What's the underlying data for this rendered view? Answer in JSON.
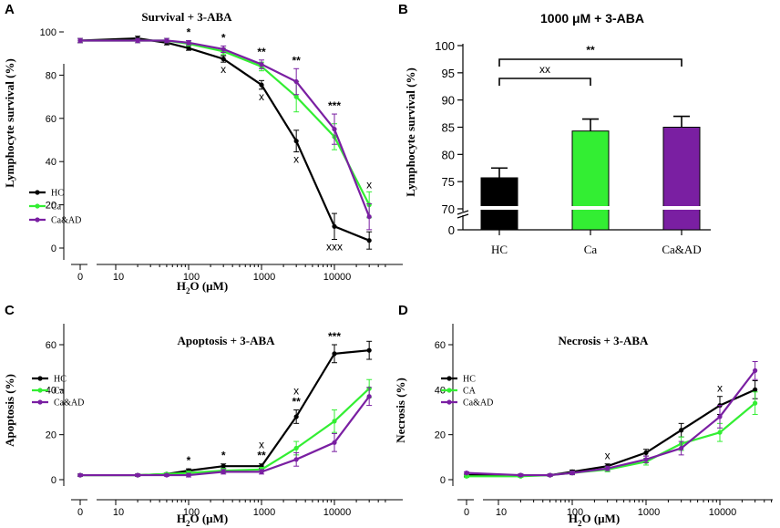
{
  "chart_data": [
    {
      "type": "line",
      "panel_letter": "A",
      "title": "Survival + 3-ABA",
      "ylabel": "Lymphocyte survival (%)",
      "xlabel_main": "H",
      "xlabel_sub": "2",
      "xlabel_mid": "O",
      "xlabel_unit": " (μM)",
      "xscale": "log",
      "yticks": [
        0,
        20,
        40,
        60,
        80,
        100
      ],
      "xticks": [
        "0",
        "10",
        "100",
        "1000",
        "10000"
      ],
      "x": [
        0,
        20,
        50,
        100,
        300,
        1000,
        3000,
        10000,
        30000
      ],
      "series": [
        {
          "name": "HC",
          "color": "#000000",
          "values": [
            96,
            97,
            95,
            92.5,
            87.5,
            75.5,
            49.5,
            10,
            3.5
          ],
          "err": [
            1,
            1,
            1,
            1,
            1.5,
            2,
            5,
            6,
            4
          ]
        },
        {
          "name": "Ca",
          "color": "#33ee33",
          "values": [
            96,
            96,
            96,
            94.5,
            91,
            84,
            70,
            51.5,
            20
          ],
          "err": [
            1,
            1,
            1,
            1,
            1.5,
            2,
            7,
            6,
            6
          ]
        },
        {
          "name": "Ca&AD",
          "color": "#7a1fa2",
          "values": [
            96,
            96,
            96,
            95,
            92,
            85,
            77,
            55,
            14.5
          ],
          "err": [
            1,
            1,
            1,
            1,
            1.5,
            2,
            6,
            7,
            6
          ]
        }
      ],
      "annotations": {
        "stars": [
          {
            "x": 100,
            "label": "*"
          },
          {
            "x": 300,
            "label": "*"
          },
          {
            "x": 1000,
            "label": "**"
          },
          {
            "x": 3000,
            "label": "**"
          },
          {
            "x": 10000,
            "label": "***"
          }
        ],
        "crosses": [
          {
            "x": 300,
            "label": "x"
          },
          {
            "x": 1000,
            "label": "x"
          },
          {
            "x": 3000,
            "label": "x"
          },
          {
            "x": 10000,
            "label": "xxx"
          },
          {
            "x": 30000,
            "label": "x"
          }
        ]
      }
    },
    {
      "type": "bar",
      "panel_letter": "B",
      "title": "1000 μM + 3-ABA",
      "ylabel": "Lymphocyte survival (%)",
      "categories": [
        "HC",
        "Ca",
        "Ca&AD"
      ],
      "values": [
        75.7,
        84.3,
        85
      ],
      "err": [
        1.8,
        2.2,
        2
      ],
      "colors": [
        "#000000",
        "#33ee33",
        "#7a1fa2"
      ],
      "yticks": [
        0,
        70,
        75,
        80,
        85,
        90,
        95,
        100
      ],
      "ylim": [
        0,
        100
      ],
      "axis_break": [
        0,
        70
      ],
      "brackets": [
        {
          "from": "HC",
          "to": "Ca",
          "label": "xx"
        },
        {
          "from": "HC",
          "to": "Ca&AD",
          "label": "**"
        }
      ]
    },
    {
      "type": "line",
      "panel_letter": "C",
      "title": "Apoptosis + 3-ABA",
      "ylabel": "Apoptosis (%)",
      "xlabel_main": "H",
      "xlabel_sub": "2",
      "xlabel_mid": "O",
      "xlabel_unit": " (μM)",
      "xscale": "log",
      "yticks": [
        0,
        20,
        40,
        60
      ],
      "xticks": [
        "0",
        "10",
        "100",
        "1000",
        "10000"
      ],
      "x": [
        0,
        20,
        50,
        100,
        300,
        1000,
        3000,
        10000,
        30000
      ],
      "series": [
        {
          "name": "HC",
          "color": "#000000",
          "values": [
            2,
            2,
            2.5,
            4,
            6,
            6,
            28,
            56,
            57.5
          ],
          "err": [
            0.5,
            0.5,
            0.5,
            0.8,
            1,
            1,
            3,
            4,
            4
          ]
        },
        {
          "name": "Ca",
          "color": "#33ee33",
          "values": [
            2,
            2,
            2.5,
            3,
            4,
            4.5,
            14,
            26,
            40.5
          ],
          "err": [
            0.5,
            0.5,
            0.5,
            0.8,
            1,
            1,
            3,
            5,
            4
          ]
        },
        {
          "name": "Ca&AD",
          "color": "#7a1fa2",
          "values": [
            2,
            2,
            2,
            2,
            3.5,
            3.5,
            9,
            16.5,
            37
          ],
          "err": [
            0.5,
            0.5,
            0.5,
            0.8,
            1,
            1,
            3,
            4,
            4
          ]
        }
      ],
      "annotations": {
        "stars": [
          {
            "x": 100,
            "label": "*"
          },
          {
            "x": 300,
            "label": "*"
          },
          {
            "x": 1000,
            "label": "**"
          },
          {
            "x": 3000,
            "label": "**"
          },
          {
            "x": 10000,
            "label": "***"
          }
        ],
        "crosses": [
          {
            "x": 1000,
            "label": "x"
          },
          {
            "x": 3000,
            "label": "x"
          }
        ]
      }
    },
    {
      "type": "line",
      "panel_letter": "D",
      "title": "Necrosis + 3-ABA",
      "ylabel": "Necrosis (%)",
      "xlabel_main": "H",
      "xlabel_sub": "2",
      "xlabel_mid": "O",
      "xlabel_unit": " (μM)",
      "xscale": "log",
      "yticks": [
        0,
        20,
        40,
        60
      ],
      "xticks": [
        "0",
        "10",
        "100",
        "1000",
        "10000"
      ],
      "x": [
        0,
        20,
        50,
        100,
        300,
        1000,
        3000,
        10000,
        30000
      ],
      "series": [
        {
          "name": "HC",
          "color": "#000000",
          "values": [
            2,
            2,
            2,
            3.5,
            6,
            12,
            22,
            33,
            40
          ],
          "err": [
            0.5,
            0.5,
            0.5,
            0.8,
            1,
            1.5,
            3,
            4,
            4
          ]
        },
        {
          "name": "CA",
          "color": "#33ee33",
          "values": [
            1.5,
            1.5,
            2,
            3,
            4.5,
            8,
            16,
            21,
            34
          ],
          "err": [
            0.5,
            0.5,
            0.5,
            0.8,
            1,
            1.5,
            3,
            4,
            5
          ]
        },
        {
          "name": "Ca&AD",
          "color": "#7a1fa2",
          "values": [
            3,
            2,
            2,
            3,
            5,
            9,
            14,
            28,
            48.5
          ],
          "err": [
            0.5,
            0.5,
            0.5,
            0.8,
            1,
            1.5,
            3,
            5,
            4
          ]
        }
      ],
      "annotations": {
        "stars": [],
        "crosses": [
          {
            "x": 300,
            "label": "x"
          },
          {
            "x": 10000,
            "label": "x"
          }
        ]
      }
    }
  ]
}
